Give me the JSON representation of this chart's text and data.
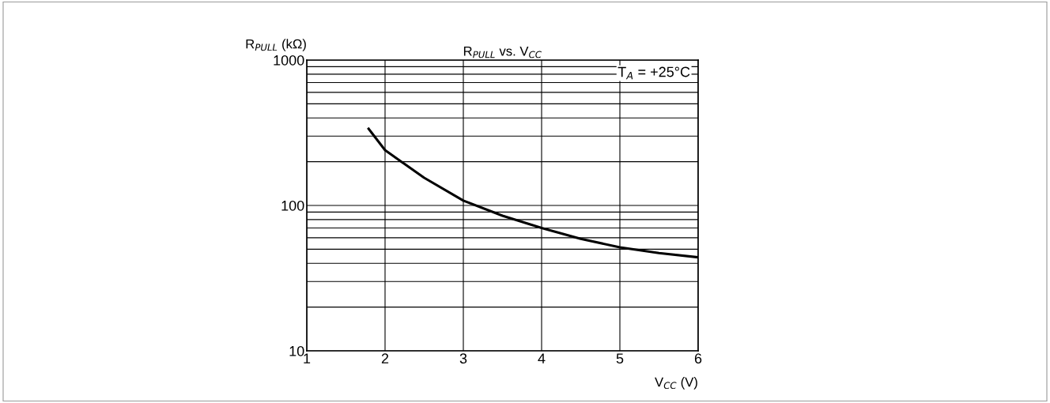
{
  "chart_data": {
    "type": "line",
    "title": "R$_{PULL}$ vs. V$_{CC}$",
    "xlabel": "V$_{CC}$ (V)",
    "ylabel": "R$_{PULL}$ (kΩ)",
    "x": [
      1.79,
      2,
      2.5,
      3,
      3.5,
      4,
      4.5,
      5,
      5.5,
      6
    ],
    "series": [
      {
        "color": "#000000",
        "values": [
          337,
          240,
          155,
          108,
          85,
          70,
          59,
          51.5,
          47,
          44
        ]
      }
    ],
    "log": "y",
    "xlim": [
      1,
      6
    ],
    "xticks": [
      1,
      2,
      3,
      4,
      5,
      6
    ],
    "ylim": [
      10,
      1000
    ],
    "yticks": [
      10,
      100,
      1000
    ],
    "grid": true,
    "marker": "none",
    "line_style": "solid",
    "annotations": [
      "T$_{A}$ = +25°C"
    ]
  }
}
